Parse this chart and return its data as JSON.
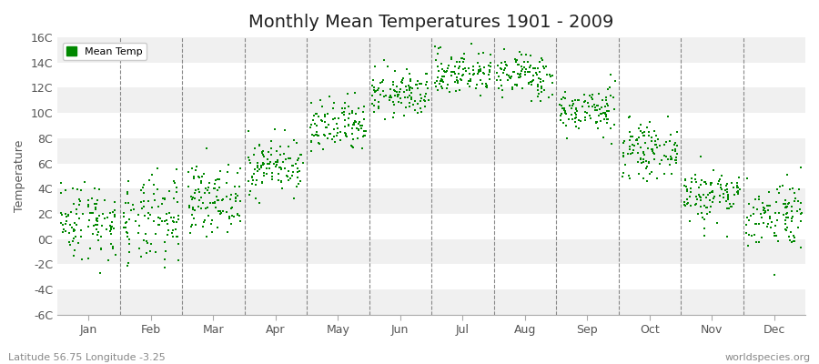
{
  "title": "Monthly Mean Temperatures 1901 - 2009",
  "ylabel": "Temperature",
  "subtitle_left": "Latitude 56.75 Longitude -3.25",
  "subtitle_right": "worldspecies.org",
  "legend_label": "Mean Temp",
  "dot_color": "#008800",
  "bg_color": "#ffffff",
  "plot_bg_color": "#ffffff",
  "band_colors": [
    "#f0f0f0",
    "#ffffff"
  ],
  "ylim": [
    -6,
    16
  ],
  "yticks": [
    -6,
    -4,
    -2,
    0,
    2,
    4,
    6,
    8,
    10,
    12,
    14,
    16
  ],
  "ytick_labels": [
    "-6C",
    "-4C",
    "-2C",
    "0C",
    "2C",
    "4C",
    "6C",
    "8C",
    "10C",
    "12C",
    "14C",
    "16C"
  ],
  "months": [
    "Jan",
    "Feb",
    "Mar",
    "Apr",
    "May",
    "Jun",
    "Jul",
    "Aug",
    "Sep",
    "Oct",
    "Nov",
    "Dec"
  ],
  "month_means": [
    1.5,
    1.3,
    3.2,
    5.8,
    8.8,
    11.5,
    13.2,
    13.0,
    10.2,
    7.0,
    3.5,
    2.0
  ],
  "month_stds": [
    1.6,
    1.8,
    1.3,
    1.1,
    1.1,
    0.9,
    0.9,
    0.9,
    0.9,
    1.0,
    1.1,
    1.4
  ],
  "n_years": 109,
  "seed": 42,
  "title_fontsize": 14,
  "axis_label_fontsize": 9,
  "tick_fontsize": 9,
  "marker_size": 4,
  "dpi": 100
}
